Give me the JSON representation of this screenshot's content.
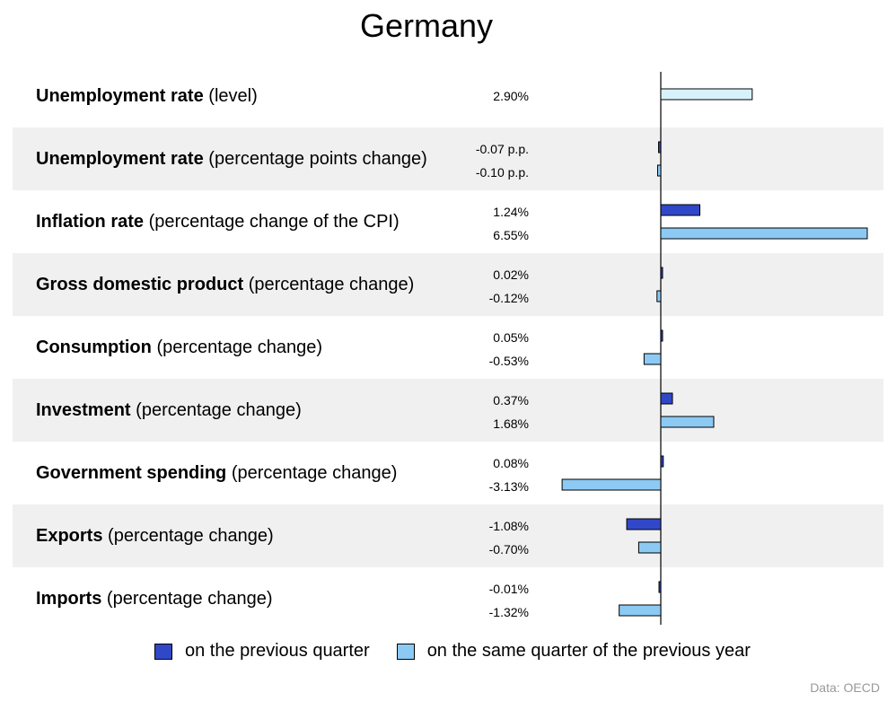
{
  "chart_data": {
    "type": "bar",
    "orientation": "horizontal",
    "title": "Germany",
    "source": "Data: OECD",
    "categories": [
      {
        "name": "Unemployment rate",
        "detail": "(level)"
      },
      {
        "name": "Unemployment rate",
        "detail": "(percentage points change)"
      },
      {
        "name": "Inflation rate",
        "detail": "(percentage change of the CPI)"
      },
      {
        "name": "Gross domestic product",
        "detail": "(percentage change)"
      },
      {
        "name": "Consumption",
        "detail": "(percentage change)"
      },
      {
        "name": "Investment",
        "detail": "(percentage change)"
      },
      {
        "name": "Government spending",
        "detail": "(percentage change)"
      },
      {
        "name": "Exports",
        "detail": "(percentage change)"
      },
      {
        "name": "Imports",
        "detail": "(percentage change)"
      }
    ],
    "series": [
      {
        "name": "on the previous quarter",
        "color": "#3048c8",
        "values": [
          null,
          -0.07,
          1.24,
          0.02,
          0.05,
          0.37,
          0.08,
          -1.08,
          -0.01
        ],
        "labels": [
          "",
          "-0.07 p.p.",
          "1.24%",
          "0.02%",
          "0.05%",
          "0.37%",
          "0.08%",
          "-1.08%",
          "-0.01%"
        ]
      },
      {
        "name": "on the same quarter of the previous year",
        "color": "#8ccaf4",
        "values": [
          null,
          -0.1,
          6.55,
          -0.12,
          -0.53,
          1.68,
          -3.13,
          -0.7,
          -1.32
        ],
        "labels": [
          "",
          "-0.10 p.p.",
          "6.55%",
          "-0.12%",
          "-0.53%",
          "1.68%",
          "-3.13%",
          "-0.70%",
          "-1.32%"
        ]
      },
      {
        "name": "level",
        "color": "#d8f2fc",
        "values": [
          2.9,
          null,
          null,
          null,
          null,
          null,
          null,
          null,
          null
        ],
        "labels": [
          "2.90%",
          "",
          "",
          "",
          "",
          "",
          "",
          "",
          ""
        ]
      }
    ],
    "xlim": [
      -3.13,
      6.55
    ],
    "grid": false,
    "legend": "bottom"
  }
}
